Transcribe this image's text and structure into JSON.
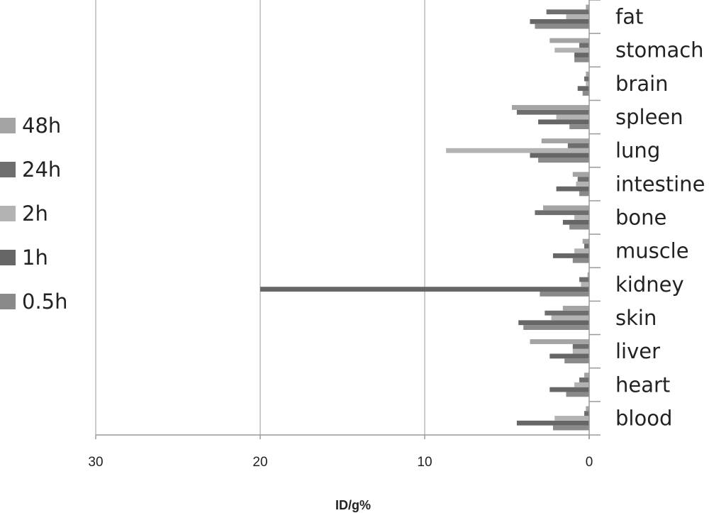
{
  "chart_data": {
    "type": "bar",
    "orientation": "horizontal",
    "x_reversed": true,
    "xlabel": "ID/g%",
    "xlim": [
      0,
      30
    ],
    "xticks": [
      30,
      20,
      10,
      0
    ],
    "grid": true,
    "legend_position": "left",
    "categories": [
      "blood",
      "heart",
      "liver",
      "skin",
      "kidney",
      "muscle",
      "bone",
      "intestine",
      "lung",
      "spleen",
      "brain",
      "stomach",
      "fat"
    ],
    "series": [
      {
        "name": "0.5h",
        "color": "#8a8a8a",
        "values": [
          2.2,
          1.4,
          1.5,
          4.0,
          3.0,
          1.0,
          1.2,
          0.6,
          3.1,
          1.2,
          0.4,
          0.9,
          3.3
        ]
      },
      {
        "name": "1h",
        "color": "#666666",
        "values": [
          4.4,
          2.4,
          2.4,
          4.3,
          20.0,
          2.2,
          1.6,
          2.0,
          3.6,
          3.1,
          0.7,
          0.9,
          3.6
        ]
      },
      {
        "name": "2h",
        "color": "#b3b3b3",
        "values": [
          2.1,
          0.9,
          1.0,
          2.3,
          0.5,
          0.9,
          0.9,
          0.8,
          8.7,
          2.0,
          0.2,
          2.1,
          1.4
        ]
      },
      {
        "name": "24h",
        "color": "#6e6e6e",
        "values": [
          0.3,
          0.6,
          1.0,
          2.7,
          0.6,
          0.3,
          3.3,
          0.7,
          1.3,
          4.4,
          0.3,
          0.6,
          2.6
        ]
      },
      {
        "name": "48h",
        "color": "#a4a4a4",
        "values": [
          0.2,
          0.3,
          3.6,
          1.6,
          0.1,
          0.4,
          2.8,
          1.0,
          2.9,
          4.7,
          0.2,
          2.4,
          0.2
        ]
      }
    ]
  }
}
